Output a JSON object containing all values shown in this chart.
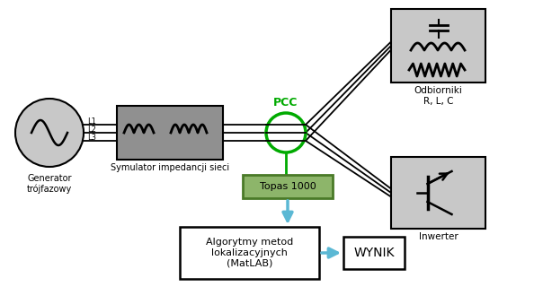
{
  "bg_color": "#ffffff",
  "gray_box_color": "#909090",
  "light_gray_color": "#c8c8c8",
  "green_color": "#00aa00",
  "green_box_color": "#8db56a",
  "green_box_border": "#4a7a28",
  "blue_arrow_color": "#5bb8d4",
  "text_color": "#000000",
  "line_color": "#000000",
  "generator_label": "Generator\ntrójfazowy",
  "impedance_label": "Symulator impedancji sieci",
  "pcc_label": "PCC",
  "topas_label": "Topas 1000",
  "algo_label": "Algorytmy metod\nlokalizacyjnych\n(MatLAB)",
  "wynik_label": "WYNIK",
  "odbiorniki_label": "Odbiorniki\nR, L, C",
  "inwerter_label": "Inwerter",
  "L1": "L1",
  "L2": "L2",
  "L3": "L3",
  "figw": 5.94,
  "figh": 3.39,
  "dpi": 100
}
